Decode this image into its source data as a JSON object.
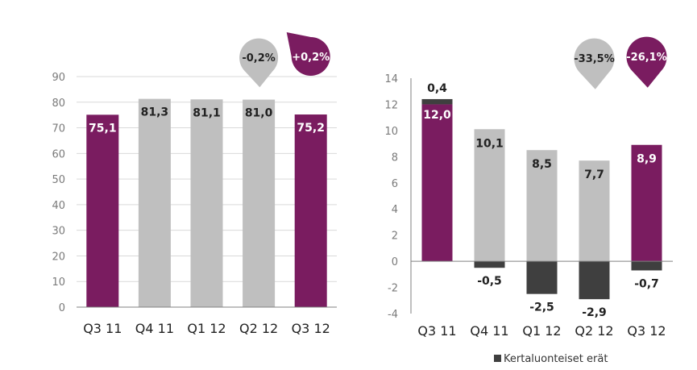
{
  "colors": {
    "purple": "#7a1c60",
    "gray": "#bfbfbf",
    "dark": "#3f3f3f",
    "grid": "#d9d9d9",
    "axis": "#808080"
  },
  "chart_data": [
    {
      "type": "bar",
      "categories": [
        "Q3 11",
        "Q4 11",
        "Q1 12",
        "Q2 12",
        "Q3 12"
      ],
      "series": [
        {
          "values": [
            75.1,
            81.3,
            81.1,
            81.0,
            75.2
          ],
          "labels": [
            "75,1",
            "81,3",
            "81,1",
            "81,0",
            "75,2"
          ],
          "colors": [
            "purple",
            "gray",
            "gray",
            "gray",
            "purple"
          ]
        }
      ],
      "ylim": [
        0,
        90
      ],
      "yticks": [
        0,
        10,
        20,
        30,
        40,
        50,
        60,
        70,
        80,
        90
      ],
      "grid": true,
      "annotations": [
        {
          "text": "-0,2%",
          "category": "Q2 12",
          "color": "gray"
        },
        {
          "text": "+0,2%",
          "category": "Q3 12",
          "color": "purple"
        }
      ]
    },
    {
      "type": "bar",
      "stacked": true,
      "categories": [
        "Q3 11",
        "Q4 11",
        "Q1 12",
        "Q2 12",
        "Q3 12"
      ],
      "series": [
        {
          "values": [
            12.0,
            10.1,
            8.5,
            7.7,
            8.9
          ],
          "labels": [
            "12,0",
            "10,1",
            "8,5",
            "7,7",
            "8,9"
          ],
          "colors": [
            "purple",
            "gray",
            "gray",
            "gray",
            "purple"
          ]
        },
        {
          "name": "Kertaluonteiset erät",
          "values": [
            0.4,
            -0.5,
            -2.5,
            -2.9,
            -0.7
          ],
          "labels": [
            "0,4",
            "-0,5",
            "-2,5",
            "-2,9",
            "-0,7"
          ],
          "colors": [
            "dark",
            "dark",
            "dark",
            "dark",
            "dark"
          ]
        }
      ],
      "ylim": [
        -4,
        14
      ],
      "yticks": [
        -4,
        -2,
        0,
        2,
        4,
        6,
        8,
        10,
        12,
        14
      ],
      "ytick_labels": [
        "-4",
        "-2",
        "0",
        "2",
        "4",
        "6",
        "8",
        "10",
        "12",
        "14"
      ],
      "grid": false,
      "legend": {
        "position": "bottom-right",
        "entries": [
          "Kertaluonteiset erät"
        ]
      },
      "annotations": [
        {
          "text": "-33,5%",
          "category": "Q2 12",
          "color": "gray"
        },
        {
          "text": "-26,1%",
          "category": "Q3 12",
          "color": "purple"
        }
      ]
    }
  ]
}
